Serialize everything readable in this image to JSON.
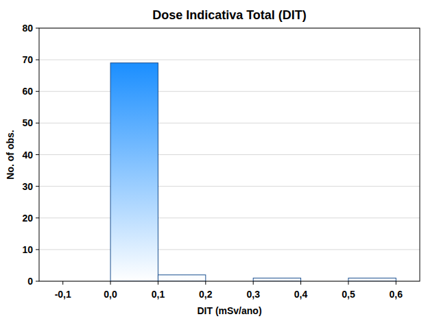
{
  "chart_data": {
    "type": "histogram",
    "title": "Dose Indicativa Total (DIT)",
    "x_label": "DIT (mSv/ano)",
    "y_label": "No. of obs.",
    "bins": [
      -0.1,
      0,
      0.1,
      0.2,
      0.3,
      0.4,
      0.5,
      0.6
    ],
    "values": [
      0,
      69,
      2,
      0,
      1,
      0,
      1
    ],
    "color": "#1e90ff",
    "xlim": [
      -0.15,
      0.65
    ],
    "xticks": [
      {
        "value": -0.1,
        "label": "-0,1"
      },
      {
        "value": 0,
        "label": "0,0"
      },
      {
        "value": 0.1,
        "label": "0,1"
      },
      {
        "value": 0.2,
        "label": "0,2"
      },
      {
        "value": 0.3,
        "label": "0,3"
      },
      {
        "value": 0.4,
        "label": "0,4"
      },
      {
        "value": 0.5,
        "label": "0,5"
      },
      {
        "value": 0.6,
        "label": "0,6"
      }
    ],
    "ylim": [
      0,
      80
    ],
    "yticks": [
      0,
      10,
      20,
      30,
      40,
      50,
      60,
      70,
      80
    ],
    "grid": true
  }
}
